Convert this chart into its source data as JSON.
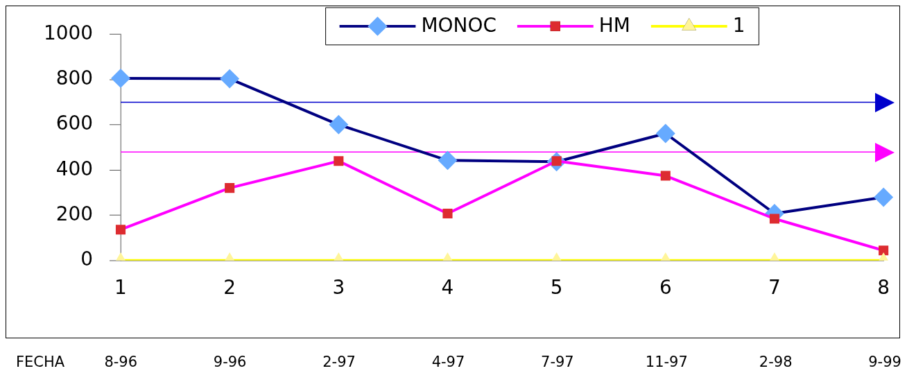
{
  "chart_data": {
    "type": "line",
    "categories": [
      "1",
      "2",
      "3",
      "4",
      "5",
      "6",
      "7",
      "8"
    ],
    "series": [
      {
        "name": "MONOC",
        "color": "#000080",
        "colors": [
          "#66aaff",
          "#66aaff",
          "#66aaff",
          "#66aaff",
          "#66aaff",
          "#66aaff",
          "#66aaff",
          "#66aaff"
        ],
        "marker": "diamond",
        "values": [
          806,
          804,
          601,
          443,
          437,
          562,
          208,
          280
        ]
      },
      {
        "name": "HM",
        "color": "#ff00ff",
        "colors": [
          "#dd2c30",
          "#dd2c30",
          "#dd2c30",
          "#dd2c30",
          "#dd2c30",
          "#dd2c30",
          "#dd2c30",
          "#dd2c30"
        ],
        "marker": "square",
        "values": [
          137,
          321,
          440,
          208,
          440,
          375,
          185,
          45
        ]
      },
      {
        "name": "1",
        "color": "#ffff00",
        "colors": [
          "#fff59a",
          "#fff59a",
          "#fff59a",
          "#fff59a",
          "#fff59a",
          "#fff59a",
          "#fff59a",
          "#fff59a"
        ],
        "marker": "triangle",
        "values": [
          0,
          0,
          0,
          0,
          0,
          0,
          0,
          0
        ]
      }
    ],
    "ylim": [
      0,
      1000
    ],
    "yticks": [
      0,
      200,
      400,
      600,
      800,
      1000
    ],
    "grid": false,
    "legend": "top right",
    "ref_lines": [
      {
        "axis": "y",
        "value": 700,
        "color": "#0000cc"
      },
      {
        "axis": "y",
        "value": 480,
        "color": "#ff00ff"
      }
    ],
    "annotations": [
      "FECHA",
      "8-96",
      "9-96",
      "2-97",
      "4-97",
      "7-97",
      "11-97",
      "2-98",
      "9-99"
    ]
  }
}
